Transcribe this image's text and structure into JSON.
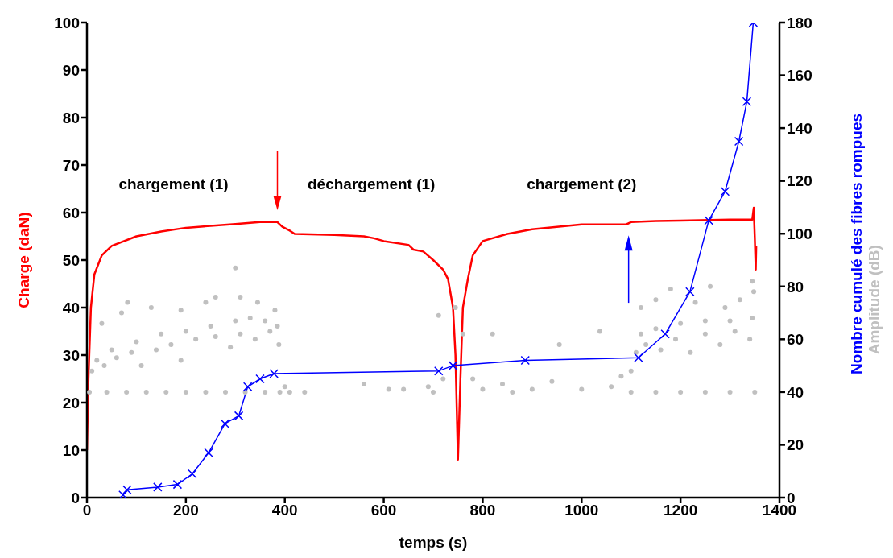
{
  "chart_data": {
    "type": "line",
    "xlabel": "temps (s)",
    "ylabel": "Charge (daN)",
    "y2label": "Nombre cumulé des fibres rompues",
    "xlim": [
      0,
      1400
    ],
    "xticks": [
      0,
      200,
      400,
      600,
      800,
      1000,
      1200,
      1400
    ],
    "ylim": [
      0,
      100
    ],
    "yticks": [
      0,
      10,
      20,
      30,
      40,
      50,
      60,
      70,
      80,
      90,
      100
    ],
    "y2lim": [
      0,
      180
    ],
    "y2ticks": [
      0,
      20,
      40,
      60,
      80,
      100,
      120,
      140,
      160,
      180
    ],
    "annotations": [
      "chargement (1)",
      "déchargement (1)",
      "chargement (2)",
      "Amplitude (dB)"
    ],
    "series": [
      {
        "color": "#ff0000",
        "marker": "none",
        "x": [
          0,
          3,
          8,
          15,
          30,
          50,
          100,
          150,
          200,
          250,
          300,
          350,
          385,
          395,
          410,
          420,
          500,
          560,
          580,
          600,
          650,
          660,
          680,
          700,
          720,
          730,
          740,
          745,
          750,
          755,
          760,
          770,
          780,
          800,
          850,
          900,
          950,
          1000,
          1050,
          1090,
          1100,
          1150,
          1200,
          1300,
          1345,
          1348,
          1350,
          1352,
          1353
        ],
        "values": [
          10,
          25,
          40,
          47,
          51,
          53,
          55,
          56,
          56.8,
          57.2,
          57.6,
          58,
          58,
          57,
          56.2,
          55.5,
          55.3,
          55,
          54.6,
          54,
          53.2,
          52.2,
          51.8,
          50,
          48,
          46,
          40,
          30,
          8,
          25,
          40,
          46,
          51,
          54,
          55.5,
          56.5,
          57,
          57.5,
          57.5,
          57.5,
          58,
          58.2,
          58.3,
          58.5,
          58.5,
          61,
          55,
          48,
          53
        ]
      },
      {
        "color": "#0000ff",
        "marker": "cross",
        "axis": "y2",
        "x": [
          73,
          81,
          143,
          183,
          213,
          246,
          279,
          307,
          325,
          350,
          378,
          711,
          740,
          886,
          1115,
          1169,
          1219,
          1257,
          1290,
          1318,
          1334,
          1347
        ],
        "values": [
          1,
          3,
          4,
          5,
          9,
          17,
          28,
          31,
          42,
          45,
          47,
          48,
          50,
          52,
          53,
          62,
          78,
          105,
          116,
          135,
          150,
          180
        ]
      },
      {
        "type": "scatter",
        "color": "#c0c0c0",
        "marker": "circle",
        "axis": "y2",
        "x": [
          5,
          40,
          80,
          120,
          160,
          200,
          240,
          280,
          320,
          360,
          390,
          10,
          20,
          35,
          60,
          90,
          110,
          140,
          170,
          190,
          220,
          260,
          290,
          310,
          340,
          370,
          388,
          50,
          100,
          150,
          200,
          250,
          300,
          330,
          360,
          385,
          30,
          70,
          82,
          130,
          190,
          240,
          260,
          300,
          310,
          345,
          380,
          400,
          410,
          440,
          560,
          610,
          640,
          690,
          700,
          720,
          711,
          745,
          760,
          780,
          800,
          820,
          840,
          860,
          900,
          955,
          940,
          1000,
          1037,
          1060,
          1080,
          1100,
          1150,
          1200,
          1250,
          1300,
          1350,
          1100,
          1110,
          1130,
          1160,
          1190,
          1220,
          1250,
          1280,
          1310,
          1340,
          1120,
          1150,
          1200,
          1250,
          1300,
          1345,
          1120,
          1150,
          1180,
          1230,
          1260,
          1290,
          1320,
          1345,
          1348
        ],
        "values": [
          40,
          40,
          40,
          40,
          40,
          40,
          40,
          40,
          40,
          40,
          40,
          48,
          52,
          50,
          53,
          55,
          50,
          56,
          58,
          52,
          60,
          61,
          57,
          62,
          60,
          63,
          58,
          56,
          59,
          62,
          63,
          65,
          67,
          68,
          67,
          65,
          66,
          70,
          74,
          72,
          71,
          74,
          76,
          87,
          76,
          74,
          71,
          42,
          40,
          40,
          43,
          41,
          41,
          42,
          40,
          45,
          69,
          72,
          62,
          45,
          41,
          62,
          43,
          40,
          41,
          58,
          44,
          41,
          63,
          42,
          46,
          40,
          40,
          40,
          40,
          40,
          40,
          48,
          55,
          58,
          56,
          60,
          55,
          62,
          58,
          63,
          60,
          62,
          64,
          66,
          67,
          67,
          68,
          72,
          75,
          79,
          74,
          80,
          72,
          75,
          82,
          78
        ]
      }
    ]
  }
}
